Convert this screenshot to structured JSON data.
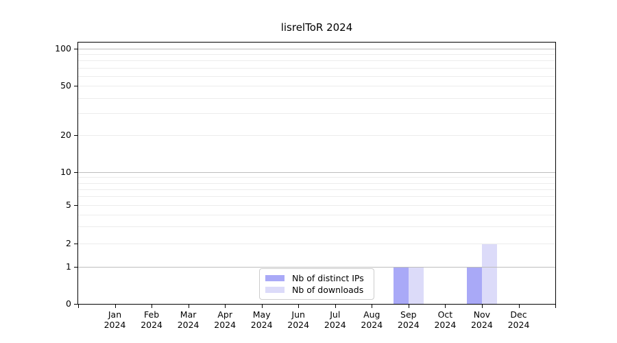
{
  "chart_data": {
    "type": "bar",
    "title": "lisrelToR 2024",
    "categories": [
      "Jan",
      "Feb",
      "Mar",
      "Apr",
      "May",
      "Jun",
      "Jul",
      "Aug",
      "Sep",
      "Oct",
      "Nov",
      "Dec"
    ],
    "category_sublabel": "2024",
    "series": [
      {
        "name": "Nb of distinct IPs",
        "color": "#a9a9f7",
        "values": [
          0,
          0,
          0,
          0,
          0,
          0,
          0,
          0,
          1,
          0,
          1,
          0
        ]
      },
      {
        "name": "Nb of downloads",
        "color": "#dcdbf9",
        "values": [
          0,
          0,
          0,
          0,
          0,
          0,
          0,
          0,
          1,
          0,
          2,
          0
        ]
      }
    ],
    "xlabel": "",
    "ylabel": "",
    "y_axis": {
      "scale": "log (zero pinned at baseline)",
      "tick_labels": [
        "0",
        "1",
        "2",
        "5",
        "10",
        "20",
        "50",
        "100"
      ],
      "tick_values": [
        0,
        1,
        2,
        5,
        10,
        20,
        50,
        100
      ],
      "major_grid_values": [
        1,
        10,
        100
      ],
      "minor_grid_values": [
        2,
        3,
        4,
        5,
        6,
        7,
        8,
        9,
        20,
        30,
        40,
        50,
        60,
        70,
        80,
        90
      ],
      "ylim": [
        0,
        112
      ]
    },
    "legend": {
      "position": "lower center",
      "border_color": "#cccccc"
    },
    "grid": "horizontal",
    "colors": {
      "background": "#ffffff",
      "major_grid": "#bdbdbd",
      "minor_grid": "#ececec",
      "axis": "#000000",
      "text": "#000000"
    }
  }
}
